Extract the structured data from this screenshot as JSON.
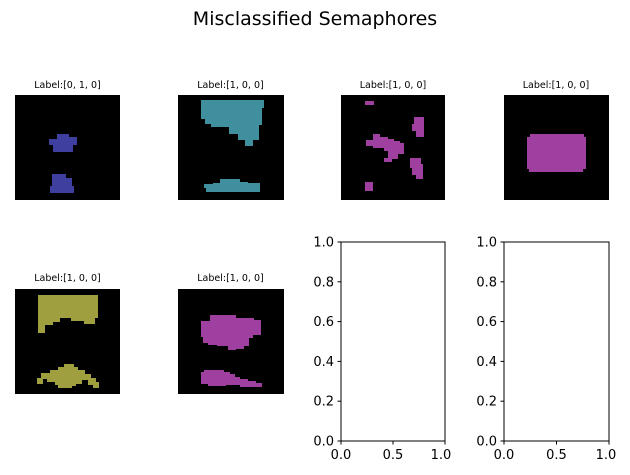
{
  "figure_title": "Misclassified Semaphores",
  "colors": {
    "background": "#000000",
    "blue": "#3f3f9f",
    "teal": "#3f8f9f",
    "magenta": "#9f3f9f",
    "olive": "#9f9f3f",
    "axis": "#000000",
    "empty_face": "#ffffff"
  },
  "chart_data": [
    {
      "type": "image",
      "title": "Label:[0, 1, 0]",
      "color_key": "blue"
    },
    {
      "type": "image",
      "title": "Label:[1, 0, 0]",
      "color_key": "teal"
    },
    {
      "type": "image",
      "title": "Label:[1, 0, 0]",
      "color_key": "magenta"
    },
    {
      "type": "image",
      "title": "Label:[1, 0, 0]",
      "color_key": "magenta"
    },
    {
      "type": "image",
      "title": "Label:[1, 0, 0]",
      "color_key": "olive"
    },
    {
      "type": "image",
      "title": "Label:[1, 0, 0]",
      "color_key": "magenta"
    },
    {
      "type": "empty",
      "xlim": [
        0.0,
        1.0
      ],
      "ylim": [
        0.0,
        1.0
      ],
      "xticks": [
        "0.0",
        "0.5",
        "1.0"
      ],
      "yticks": [
        "0.0",
        "0.2",
        "0.4",
        "0.6",
        "0.8",
        "1.0"
      ]
    },
    {
      "type": "empty",
      "xlim": [
        0.0,
        1.0
      ],
      "ylim": [
        0.0,
        1.0
      ],
      "xticks": [
        "0.0",
        "0.5",
        "1.0"
      ],
      "yticks": [
        "0.0",
        "0.2",
        "0.4",
        "0.6",
        "0.8",
        "1.0"
      ]
    }
  ]
}
